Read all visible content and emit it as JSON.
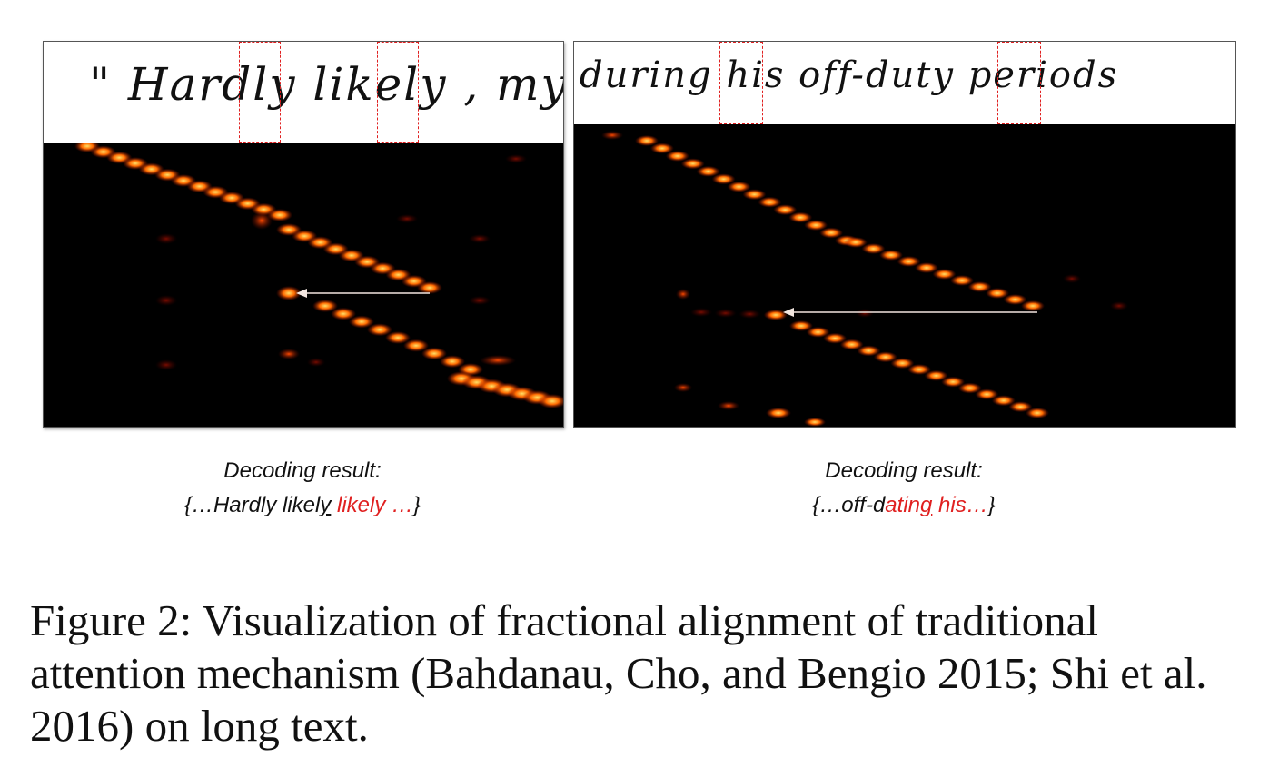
{
  "left_panel": {
    "handwriting_text": "\" Hardly likely , my",
    "decoding_label": "Decoding result:",
    "result_open": "{…Hardly likel",
    "result_underlined": "y",
    "result_space": " ",
    "result_red": "likely …",
    "result_close": "}"
  },
  "right_panel": {
    "handwriting_text": "during his off-duty periods",
    "decoding_label": "Decoding result:",
    "result_open": "{…off-d",
    "result_red_a": "atin",
    "result_underlined": "g",
    "result_red_b": " his…",
    "result_close": "}"
  },
  "colors": {
    "highlight_box": "#e02020",
    "heat_low": "#8a0a00",
    "heat_mid": "#ff5a00",
    "heat_high": "#ffe066",
    "arrow": "#f2e6e0"
  },
  "figure_caption": "Figure 2: Visualization of fractional alignment of traditional attention mechanism (Bahdanau, Cho, and Bengio 2015; Shi et al. 2016) on long text."
}
